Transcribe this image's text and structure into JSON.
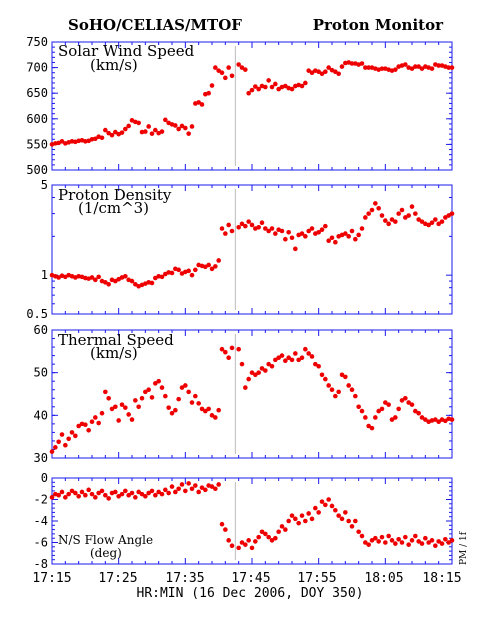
{
  "header": {
    "left_title": "SoHO/CELIAS/MTOF",
    "right_title": "Proton Monitor"
  },
  "x_axis": {
    "label": "HR:MIN (16 Dec 2006, DOY 350)",
    "ticks": [
      "17:15",
      "17:25",
      "17:35",
      "17:45",
      "17:55",
      "18:05",
      "18:15"
    ],
    "range_minutes": [
      0,
      60
    ],
    "gap_marker_minute": 27.5
  },
  "side_label": "PM / 1f",
  "colors": {
    "point": "#ee0000",
    "axis": "#1a1aee",
    "gap_line": "#bbbbbb",
    "text": "#000000"
  },
  "chart_data": [
    {
      "type": "scatter",
      "title": "Solar Wind Speed",
      "unit": "(km/s)",
      "ylim": [
        500,
        750
      ],
      "y_ticks": [
        "500",
        "550",
        "600",
        "650",
        "700",
        "750"
      ],
      "grid": false,
      "x": [
        0.0,
        0.5,
        1.0,
        1.5,
        2.0,
        2.5,
        3.0,
        3.5,
        4.0,
        4.5,
        5.0,
        5.5,
        6.0,
        6.5,
        7.0,
        7.5,
        8.0,
        8.5,
        9.0,
        9.5,
        10.0,
        10.5,
        11.0,
        11.5,
        12.0,
        12.5,
        13.0,
        13.5,
        14.0,
        14.5,
        15.0,
        15.5,
        16.0,
        16.5,
        17.0,
        17.5,
        18.0,
        18.5,
        19.0,
        19.5,
        20.0,
        20.5,
        21.0,
        21.5,
        22.0,
        22.5,
        23.0,
        23.5,
        24.0,
        24.5,
        25.0,
        25.5,
        26.0,
        26.5,
        27.0,
        28.0,
        28.5,
        29.0,
        29.5,
        30.0,
        30.5,
        31.0,
        31.5,
        32.0,
        32.5,
        33.0,
        33.5,
        34.0,
        34.5,
        35.0,
        35.5,
        36.0,
        36.5,
        37.0,
        37.5,
        38.0,
        38.5,
        39.0,
        39.5,
        40.0,
        40.5,
        41.0,
        41.5,
        42.0,
        42.5,
        43.0,
        43.5,
        44.0,
        44.5,
        45.0,
        45.5,
        46.0,
        46.5,
        47.0,
        47.5,
        48.0,
        48.5,
        49.0,
        49.5,
        50.0,
        50.5,
        51.0,
        51.5,
        52.0,
        52.5,
        53.0,
        53.5,
        54.0,
        54.5,
        55.0,
        55.5,
        56.0,
        56.5,
        57.0,
        57.5,
        58.0,
        58.5,
        59.0,
        59.5,
        60.0
      ],
      "y": [
        550,
        552,
        553,
        556,
        552,
        554,
        556,
        555,
        557,
        558,
        556,
        557,
        560,
        561,
        565,
        563,
        578,
        572,
        568,
        574,
        570,
        573,
        580,
        586,
        597,
        594,
        592,
        574,
        575,
        585,
        571,
        578,
        572,
        575,
        598,
        592,
        589,
        587,
        580,
        586,
        582,
        571,
        585,
        630,
        632,
        628,
        648,
        650,
        665,
        700,
        694,
        690,
        680,
        700,
        684,
        706,
        700,
        696,
        650,
        656,
        663,
        658,
        664,
        662,
        675,
        662,
        668,
        658,
        662,
        664,
        660,
        658,
        664,
        666,
        664,
        670,
        694,
        690,
        694,
        692,
        688,
        692,
        700,
        695,
        692,
        688,
        702,
        709,
        710,
        708,
        708,
        706,
        708,
        700,
        700,
        700,
        698,
        696,
        698,
        698,
        696,
        694,
        696,
        702,
        704,
        706,
        700,
        698,
        702,
        702,
        698,
        702,
        700,
        698,
        706,
        704,
        704,
        702,
        700,
        700
      ]
    },
    {
      "type": "scatter",
      "title": "Proton Density",
      "unit": "(1/cm^3)",
      "scale": "log",
      "ylim": [
        0.5,
        5
      ],
      "y_ticks": [
        "0.5",
        "1",
        "5"
      ],
      "grid": false,
      "x": [
        0.0,
        0.5,
        1.0,
        1.5,
        2.0,
        2.5,
        3.0,
        3.5,
        4.0,
        4.5,
        5.0,
        5.5,
        6.0,
        6.5,
        7.0,
        7.5,
        8.0,
        8.5,
        9.0,
        9.5,
        10.0,
        10.5,
        11.0,
        11.5,
        12.0,
        12.5,
        13.0,
        13.5,
        14.0,
        14.5,
        15.0,
        15.5,
        16.0,
        16.5,
        17.0,
        17.5,
        18.0,
        18.5,
        19.0,
        19.5,
        20.0,
        20.5,
        21.0,
        21.5,
        22.0,
        22.5,
        23.0,
        23.5,
        24.0,
        24.5,
        25.0,
        25.5,
        26.0,
        26.5,
        27.0,
        28.0,
        28.5,
        29.0,
        29.5,
        30.0,
        30.5,
        31.0,
        31.5,
        32.0,
        32.5,
        33.0,
        33.5,
        34.0,
        34.5,
        35.0,
        35.5,
        36.0,
        36.5,
        37.0,
        37.5,
        38.0,
        38.5,
        39.0,
        39.5,
        40.0,
        40.5,
        41.0,
        41.5,
        42.0,
        42.5,
        43.0,
        43.5,
        44.0,
        44.5,
        45.0,
        45.5,
        46.0,
        46.5,
        47.0,
        47.5,
        48.0,
        48.5,
        49.0,
        49.5,
        50.0,
        50.5,
        51.0,
        51.5,
        52.0,
        52.5,
        53.0,
        53.5,
        54.0,
        54.5,
        55.0,
        55.5,
        56.0,
        56.5,
        57.0,
        57.5,
        58.0,
        58.5,
        59.0,
        59.5,
        60.0
      ],
      "y": [
        1.0,
        0.98,
        0.96,
        0.99,
        0.97,
        1.0,
        0.98,
        0.96,
        0.98,
        0.97,
        0.95,
        0.94,
        0.96,
        0.92,
        0.97,
        0.9,
        0.88,
        0.85,
        0.92,
        0.9,
        0.93,
        0.96,
        0.98,
        0.92,
        0.9,
        0.85,
        0.82,
        0.84,
        0.86,
        0.88,
        0.87,
        0.95,
        0.98,
        0.97,
        1.02,
        1.05,
        1.04,
        1.12,
        1.1,
        1.03,
        1.06,
        1.08,
        1.0,
        1.1,
        1.2,
        1.18,
        1.16,
        1.2,
        1.12,
        1.17,
        1.3,
        2.3,
        2.1,
        2.45,
        2.2,
        2.35,
        2.5,
        2.4,
        2.6,
        2.45,
        2.3,
        2.35,
        2.55,
        2.3,
        2.2,
        2.3,
        2.1,
        2.25,
        2.2,
        1.9,
        2.15,
        1.95,
        1.6,
        2.05,
        2.1,
        2.0,
        2.2,
        2.3,
        2.1,
        2.15,
        2.25,
        2.4,
        1.85,
        1.95,
        1.8,
        2.0,
        2.05,
        2.1,
        2.0,
        2.2,
        1.9,
        2.05,
        2.3,
        2.8,
        3.0,
        3.2,
        3.6,
        3.3,
        2.9,
        2.65,
        2.5,
        2.7,
        2.6,
        3.0,
        3.2,
        2.8,
        2.9,
        3.4,
        3.0,
        2.7,
        2.6,
        2.5,
        2.45,
        2.55,
        2.7,
        2.5,
        2.6,
        2.8,
        2.9,
        3.0
      ]
    },
    {
      "type": "scatter",
      "title": "Thermal Speed",
      "unit": "(km/s)",
      "ylim": [
        30,
        60
      ],
      "y_ticks": [
        "30",
        "40",
        "50",
        "60"
      ],
      "grid": false,
      "x": [
        0.0,
        0.5,
        1.0,
        1.5,
        2.0,
        2.5,
        3.0,
        3.5,
        4.0,
        4.5,
        5.0,
        5.5,
        6.0,
        6.5,
        7.0,
        7.5,
        8.0,
        8.5,
        9.0,
        9.5,
        10.0,
        10.5,
        11.0,
        11.5,
        12.0,
        12.5,
        13.0,
        13.5,
        14.0,
        14.5,
        15.0,
        15.5,
        16.0,
        16.5,
        17.0,
        17.5,
        18.0,
        18.5,
        19.0,
        19.5,
        20.0,
        20.5,
        21.0,
        21.5,
        22.0,
        22.5,
        23.0,
        23.5,
        24.0,
        24.5,
        25.0,
        25.5,
        26.0,
        26.5,
        27.0,
        28.0,
        28.5,
        29.0,
        29.5,
        30.0,
        30.5,
        31.0,
        31.5,
        32.0,
        32.5,
        33.0,
        33.5,
        34.0,
        34.5,
        35.0,
        35.5,
        36.0,
        36.5,
        37.0,
        37.5,
        38.0,
        38.5,
        39.0,
        39.5,
        40.0,
        40.5,
        41.0,
        41.5,
        42.0,
        42.5,
        43.0,
        43.5,
        44.0,
        44.5,
        45.0,
        45.5,
        46.0,
        46.5,
        47.0,
        47.5,
        48.0,
        48.5,
        49.0,
        49.5,
        50.0,
        50.5,
        51.0,
        51.5,
        52.0,
        52.5,
        53.0,
        53.5,
        54.0,
        54.5,
        55.0,
        55.5,
        56.0,
        56.5,
        57.0,
        57.5,
        58.0,
        58.5,
        59.0,
        59.5,
        60.0
      ],
      "y": [
        31.5,
        32.5,
        33.8,
        35.5,
        33.0,
        34.5,
        36.0,
        35.2,
        37.5,
        38.0,
        37.8,
        36.5,
        38.5,
        39.5,
        38.2,
        40.5,
        45.5,
        44.0,
        41.5,
        42.0,
        38.8,
        42.5,
        41.8,
        40.2,
        39.0,
        43.5,
        42.0,
        44.0,
        45.5,
        46.0,
        44.2,
        47.5,
        48.0,
        46.5,
        44.5,
        41.8,
        40.5,
        41.2,
        43.8,
        46.5,
        47.0,
        45.5,
        43.0,
        44.5,
        42.8,
        41.5,
        41.0,
        41.5,
        40.0,
        39.5,
        41.2,
        55.5,
        54.8,
        53.5,
        55.8,
        55.5,
        52.0,
        46.5,
        48.5,
        50.0,
        49.5,
        50.0,
        51.0,
        50.5,
        52.0,
        51.5,
        53.0,
        53.5,
        54.0,
        52.8,
        53.5,
        53.0,
        54.5,
        53.0,
        53.5,
        55.5,
        54.5,
        53.8,
        52.0,
        51.5,
        49.5,
        48.5,
        47.0,
        46.0,
        44.5,
        45.5,
        49.5,
        49.0,
        47.0,
        46.0,
        44.5,
        42.0,
        41.0,
        39.5,
        37.5,
        37.0,
        39.5,
        41.0,
        41.5,
        43.0,
        42.5,
        39.0,
        39.5,
        41.5,
        43.5,
        44.0,
        43.0,
        42.5,
        41.0,
        40.5,
        39.5,
        39.0,
        38.5,
        38.8,
        39.0,
        38.5,
        39.0,
        38.7,
        39.2,
        39.0
      ]
    },
    {
      "type": "scatter",
      "title": "N/S Flow Angle",
      "unit": "(deg)",
      "ylim": [
        -8,
        0
      ],
      "y_ticks": [
        "-8",
        "-6",
        "-4",
        "-2",
        "0"
      ],
      "grid": false,
      "x": [
        0.0,
        0.5,
        1.0,
        1.5,
        2.0,
        2.5,
        3.0,
        3.5,
        4.0,
        4.5,
        5.0,
        5.5,
        6.0,
        6.5,
        7.0,
        7.5,
        8.0,
        8.5,
        9.0,
        9.5,
        10.0,
        10.5,
        11.0,
        11.5,
        12.0,
        12.5,
        13.0,
        13.5,
        14.0,
        14.5,
        15.0,
        15.5,
        16.0,
        16.5,
        17.0,
        17.5,
        18.0,
        18.5,
        19.0,
        19.5,
        20.0,
        20.5,
        21.0,
        21.5,
        22.0,
        22.5,
        23.0,
        23.5,
        24.0,
        24.5,
        25.0,
        25.5,
        26.0,
        26.5,
        27.0,
        28.0,
        28.5,
        29.0,
        29.5,
        30.0,
        30.5,
        31.0,
        31.5,
        32.0,
        32.5,
        33.0,
        33.5,
        34.0,
        34.5,
        35.0,
        35.5,
        36.0,
        36.5,
        37.0,
        37.5,
        38.0,
        38.5,
        39.0,
        39.5,
        40.0,
        40.5,
        41.0,
        41.5,
        42.0,
        42.5,
        43.0,
        43.5,
        44.0,
        44.5,
        45.0,
        45.5,
        46.0,
        46.5,
        47.0,
        47.5,
        48.0,
        48.5,
        49.0,
        49.5,
        50.0,
        50.5,
        51.0,
        51.5,
        52.0,
        52.5,
        53.0,
        53.5,
        54.0,
        54.5,
        55.0,
        55.5,
        56.0,
        56.5,
        57.0,
        57.5,
        58.0,
        58.5,
        59.0,
        59.5,
        60.0
      ],
      "y": [
        -1.8,
        -1.5,
        -1.6,
        -1.3,
        -1.8,
        -1.5,
        -1.2,
        -1.4,
        -1.7,
        -1.3,
        -1.6,
        -1.1,
        -1.5,
        -1.8,
        -1.4,
        -1.2,
        -1.6,
        -1.9,
        -1.4,
        -1.3,
        -1.7,
        -1.5,
        -1.2,
        -1.6,
        -1.4,
        -1.8,
        -1.3,
        -1.5,
        -1.7,
        -1.4,
        -1.2,
        -1.6,
        -1.3,
        -1.5,
        -1.1,
        -1.4,
        -0.8,
        -1.3,
        -1.0,
        -0.6,
        -1.2,
        -0.5,
        -1.0,
        -0.7,
        -1.3,
        -0.9,
        -1.1,
        -0.7,
        -0.8,
        -1.0,
        -0.6,
        -4.3,
        -4.8,
        -5.8,
        -6.3,
        -6.5,
        -6.0,
        -6.2,
        -5.8,
        -6.5,
        -5.9,
        -5.5,
        -5.0,
        -5.2,
        -5.5,
        -5.8,
        -5.6,
        -5.0,
        -4.5,
        -4.8,
        -4.0,
        -3.5,
        -3.8,
        -4.2,
        -3.5,
        -4.0,
        -3.3,
        -3.8,
        -2.8,
        -3.2,
        -2.2,
        -2.5,
        -2.0,
        -2.6,
        -3.0,
        -3.5,
        -3.8,
        -3.2,
        -4.0,
        -4.5,
        -4.0,
        -5.0,
        -5.4,
        -6.0,
        -6.2,
        -5.8,
        -5.6,
        -5.9,
        -5.5,
        -6.0,
        -5.4,
        -5.8,
        -6.1,
        -5.7,
        -6.0,
        -5.5,
        -6.2,
        -5.8,
        -5.4,
        -5.9,
        -6.1,
        -5.6,
        -6.0,
        -5.8,
        -6.3,
        -5.9,
        -6.1,
        -5.7,
        -6.0,
        -5.8
      ]
    }
  ]
}
